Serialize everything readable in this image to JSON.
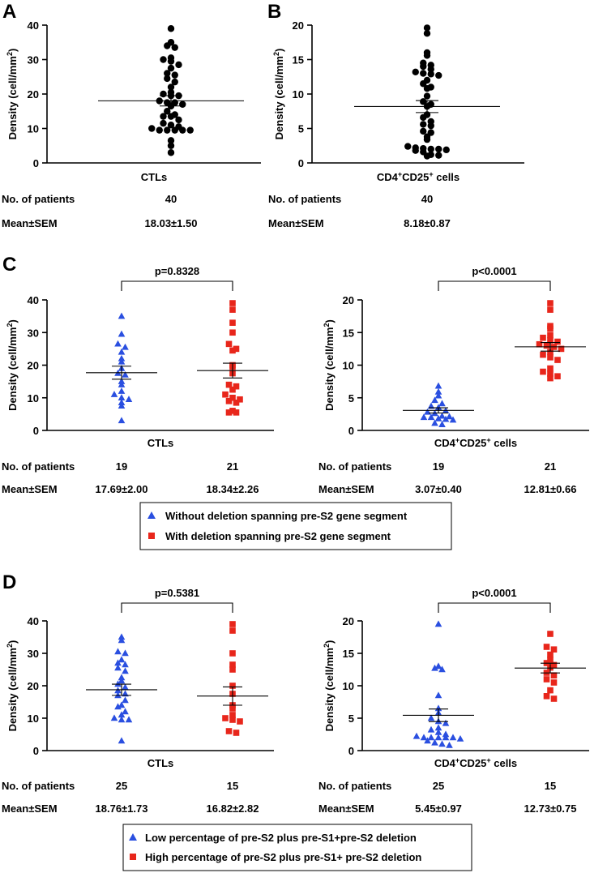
{
  "panels": {
    "A": "A",
    "B": "B",
    "C": "C",
    "D": "D"
  },
  "stats_labels": {
    "patients": "No. of patients",
    "mean": "Mean±SEM"
  },
  "ylabel": {
    "prefix": "Density (cell/mm",
    "sup": "2",
    "suffix": ")"
  },
  "cd4": {
    "base": "CD4",
    "sup1": "+",
    "mid": "CD25",
    "sup2": "+",
    "tail": " cells"
  },
  "legendC": {
    "items": [
      "Without deletion spanning pre-S2 gene segment",
      "With deletion spanning pre-S2 gene segment"
    ]
  },
  "legendD": {
    "items": [
      "Low percentage of pre-S2 plus pre-S1+pre-S2 deletion",
      "High percentage of pre-S2 plus pre-S1+ pre-S2 deletion"
    ]
  },
  "colors": {
    "blue": "#2a4fe0",
    "red": "#e8261b",
    "black": "#000000"
  },
  "chart_data": [
    {
      "id": "A",
      "type": "scatter",
      "xlabel": "CTLs",
      "ylabel": "Density (cell/mm2)",
      "ylim": [
        0,
        40
      ],
      "yticks": [
        0,
        10,
        20,
        30,
        40
      ],
      "groups": [
        {
          "name": "CTLs",
          "marker": "circle",
          "color": "#000000",
          "mean": 18.03,
          "sem": 1.5,
          "n": "40",
          "mean_sem_text": "18.03±1.50",
          "values": [
            39,
            35,
            34,
            33.5,
            30.5,
            30,
            29.5,
            28.5,
            27.5,
            26,
            25.5,
            24.5,
            23.5,
            22,
            20.5,
            20,
            19.5,
            19.5,
            18,
            17.5,
            17.5,
            17,
            16.5,
            15,
            14,
            13.5,
            13.5,
            12.5,
            11.5,
            11,
            10.5,
            10,
            9.5,
            9.5,
            9.5,
            9.5,
            9.5,
            6.5,
            5,
            3
          ]
        }
      ]
    },
    {
      "id": "B",
      "type": "scatter",
      "xlabel": "CD4+CD25+ cells",
      "ylabel": "Density (cell/mm2)",
      "ylim": [
        0,
        20
      ],
      "yticks": [
        0,
        5,
        10,
        15,
        20
      ],
      "groups": [
        {
          "name": "CD4+CD25+ cells",
          "marker": "circle",
          "color": "#000000",
          "mean": 8.18,
          "sem": 0.87,
          "n": "40",
          "mean_sem_text": "8.18±0.87",
          "values": [
            19.6,
            18.8,
            16,
            15.6,
            14.5,
            14.2,
            14,
            13.6,
            13.2,
            13,
            12.9,
            12.7,
            12,
            11.5,
            11,
            10.8,
            9.7,
            8.9,
            8.5,
            8.2,
            7,
            6.6,
            6,
            5.6,
            5.4,
            4.6,
            4.4,
            3.8,
            3.4,
            2.4,
            2.2,
            2.1,
            2,
            2,
            1.9,
            1.8,
            1.6,
            1.2,
            1.1,
            1
          ]
        }
      ]
    },
    {
      "id": "C1",
      "type": "scatter",
      "xlabel": "CTLs",
      "ylabel": "Density (cell/mm2)",
      "ylim": [
        0,
        40
      ],
      "yticks": [
        0,
        10,
        20,
        30,
        40
      ],
      "comparison": "p=0.8328",
      "groups": [
        {
          "name": "Without deletion spanning pre-S2 gene segment",
          "marker": "triangle",
          "color": "#2a4fe0",
          "mean": 17.69,
          "sem": 2.0,
          "n": "19",
          "mean_sem_text": "17.69±2.00",
          "values": [
            35,
            29.5,
            26.5,
            25.5,
            24,
            22,
            21,
            19,
            17.5,
            17,
            15,
            14,
            12,
            11,
            10,
            9.5,
            8.5,
            7.5,
            3
          ]
        },
        {
          "name": "With deletion spanning pre-S2 gene segment",
          "marker": "square",
          "color": "#e8261b",
          "mean": 18.34,
          "sem": 2.26,
          "n": "21",
          "mean_sem_text": "18.34±2.26",
          "values": [
            39,
            37,
            33,
            30,
            26.5,
            25,
            24.5,
            20,
            19.5,
            17.5,
            14,
            13.5,
            12.5,
            11,
            10,
            9.5,
            9,
            8.5,
            6,
            5.5,
            5.5
          ]
        }
      ]
    },
    {
      "id": "C2",
      "type": "scatter",
      "xlabel": "CD4+CD25+ cells",
      "ylabel": "Density (cell/mm2)",
      "ylim": [
        0,
        20
      ],
      "yticks": [
        0,
        5,
        10,
        15,
        20
      ],
      "comparison": "p<0.0001",
      "groups": [
        {
          "name": "Without deletion spanning pre-S2 gene segment",
          "marker": "triangle",
          "color": "#2a4fe0",
          "mean": 3.07,
          "sem": 0.4,
          "n": "19",
          "mean_sem_text": "3.07±0.40",
          "values": [
            6.8,
            5.9,
            5.3,
            4.6,
            4.1,
            3.7,
            3.5,
            3,
            2.8,
            2.6,
            2.2,
            2.1,
            2,
            2,
            1.8,
            1.7,
            1.6,
            1.1,
            0.9
          ]
        },
        {
          "name": "With deletion spanning pre-S2 gene segment",
          "marker": "square",
          "color": "#e8261b",
          "mean": 12.81,
          "sem": 0.66,
          "n": "21",
          "mean_sem_text": "12.81±0.66",
          "values": [
            19.5,
            18.5,
            16,
            15.6,
            14.6,
            14.2,
            13.8,
            13.6,
            13.2,
            13,
            12.8,
            12.5,
            12,
            11.6,
            11.2,
            10.8,
            9.5,
            9,
            8.7,
            8.3,
            8
          ]
        }
      ]
    },
    {
      "id": "D1",
      "type": "scatter",
      "xlabel": "CTLs",
      "ylabel": "Density (cell/mm2)",
      "ylim": [
        0,
        40
      ],
      "yticks": [
        0,
        10,
        20,
        30,
        40
      ],
      "comparison": "p=0.5381",
      "groups": [
        {
          "name": "Low percentage of pre-S2 plus pre-S1+pre-S2 deletion",
          "marker": "triangle",
          "color": "#2a4fe0",
          "mean": 18.76,
          "sem": 1.73,
          "n": "25",
          "mean_sem_text": "18.76±1.73",
          "values": [
            35,
            34,
            30.5,
            30,
            28,
            27,
            26.5,
            25.5,
            24.5,
            22.5,
            21.5,
            20.5,
            19.5,
            18.5,
            17.5,
            17,
            15.5,
            14,
            13.5,
            12,
            11,
            10,
            9.5,
            9.5,
            3
          ]
        },
        {
          "name": "High percentage of pre-S2 plus pre-S1+ pre-S2 deletion",
          "marker": "square",
          "color": "#e8261b",
          "mean": 16.82,
          "sem": 2.82,
          "n": "15",
          "mean_sem_text": "16.82±2.82",
          "values": [
            39,
            37,
            30,
            26.5,
            25,
            20,
            17.5,
            14,
            13,
            11,
            10,
            9.5,
            9,
            6,
            5.5
          ]
        }
      ]
    },
    {
      "id": "D2",
      "type": "scatter",
      "xlabel": "CD4+CD25+ cells",
      "ylabel": "Density (cell/mm2)",
      "ylim": [
        0,
        20
      ],
      "yticks": [
        0,
        5,
        10,
        15,
        20
      ],
      "comparison": "p<0.0001",
      "groups": [
        {
          "name": "Low percentage of pre-S2 plus pre-S1+pre-S2 deletion",
          "marker": "triangle",
          "color": "#2a4fe0",
          "mean": 5.45,
          "sem": 0.97,
          "n": "25",
          "mean_sem_text": "5.45±0.97",
          "values": [
            19.5,
            13,
            12.7,
            12.5,
            8.5,
            6.5,
            5.8,
            5,
            4.5,
            4.2,
            3.5,
            3.2,
            2.8,
            2.5,
            2.2,
            2,
            2,
            2,
            2,
            2,
            1.8,
            1.5,
            1.2,
            1,
            0.8
          ]
        },
        {
          "name": "High percentage of pre-S2 plus pre-S1+ pre-S2 deletion",
          "marker": "square",
          "color": "#e8261b",
          "mean": 12.73,
          "sem": 0.75,
          "n": "15",
          "mean_sem_text": "12.73±0.75",
          "values": [
            18,
            16,
            15.6,
            14.8,
            14,
            13.5,
            13.2,
            12.8,
            12,
            11.6,
            11,
            10.5,
            9.3,
            8.4,
            8
          ]
        }
      ]
    }
  ]
}
